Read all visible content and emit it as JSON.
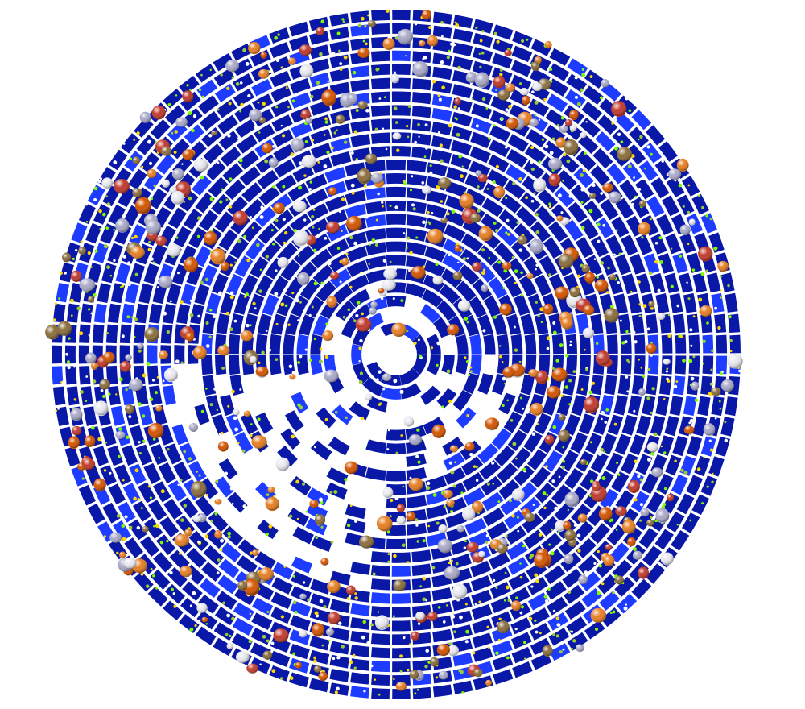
{
  "visualization": {
    "kind": "concentric ring plot of segmented tiles with overlaid blob markers",
    "background_color": "#ffffff",
    "tile_color": "#0a18a8",
    "tile_highlight_color": "#1e3cff",
    "gap_color": "#ffffff",
    "speck_colors": [
      "#9acd32",
      "#ffd700",
      "#7cfc00",
      "#ffffff"
    ],
    "blob_colors": [
      "#c0392b",
      "#d35400",
      "#e67e22",
      "#a9a9c8",
      "#e8e8f0",
      "#8a6d3b"
    ]
  }
}
